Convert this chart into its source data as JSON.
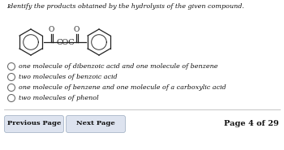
{
  "title": "Identify the products obtained by the hydrolysis of the given compound.",
  "options": [
    "one molecule of dibenzoic acid and one molecule of benzene",
    "two molecules of benzoic acid",
    "one molecule of benzene and one molecule of a carboxylic acid",
    "two molecules of phenol"
  ],
  "footer_left1": "Previous Page",
  "footer_left2": "Next Page",
  "footer_right": "Page 4 of 29",
  "bg_color": "#ffffff",
  "text_color": "#111111",
  "title_fontsize": 5.8,
  "option_fontsize": 5.8,
  "footer_fontsize": 6.0,
  "button_color": "#dde3ef",
  "button_text_color": "#111111",
  "struct_text_color": "#333333"
}
